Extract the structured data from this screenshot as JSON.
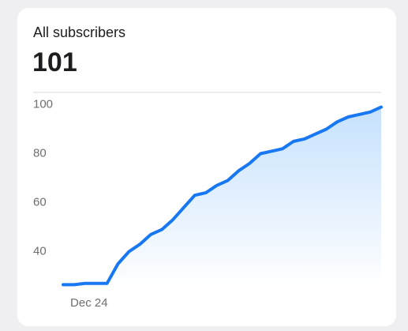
{
  "card": {
    "title": "All subscribers",
    "value": 101
  },
  "chart_data": {
    "type": "area",
    "categories": [
      null,
      null,
      "Dec 24",
      null,
      null,
      null,
      null,
      null,
      null,
      null,
      null,
      null,
      null,
      null,
      null,
      null,
      null,
      null,
      null,
      null,
      null,
      null,
      null,
      null,
      null,
      null,
      null,
      null,
      null,
      null
    ],
    "values": [
      26.5,
      26.5,
      27,
      27,
      27,
      35,
      40,
      43,
      47,
      49,
      53,
      58,
      63,
      64,
      67,
      69,
      73,
      76,
      80,
      81,
      82,
      85,
      86,
      88,
      90,
      93,
      95,
      96,
      97,
      99
    ],
    "color": "#1877f2",
    "ylim": [
      25,
      105
    ],
    "yticks": [
      40,
      60,
      80,
      100
    ],
    "grid": false
  }
}
